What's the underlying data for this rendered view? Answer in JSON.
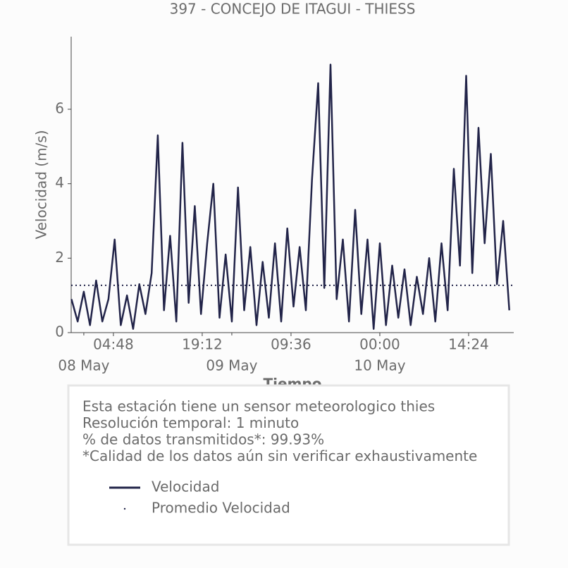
{
  "chart_data": {
    "type": "line",
    "title": "397 - CONCEJO DE ITAGUI - THIESS",
    "x_label": "Tiempo",
    "y_label": "Velocidad (m/s)",
    "x": [
      "07 May 22:00",
      "07 May 23:00",
      "08 May 00:00",
      "08 May 01:00",
      "08 May 02:00",
      "08 May 03:00",
      "08 May 04:00",
      "08 May 05:00",
      "08 May 06:00",
      "08 May 07:00",
      "08 May 08:00",
      "08 May 09:00",
      "08 May 10:00",
      "08 May 11:00",
      "08 May 12:00",
      "08 May 13:00",
      "08 May 14:00",
      "08 May 15:00",
      "08 May 16:00",
      "08 May 17:00",
      "08 May 18:00",
      "08 May 19:00",
      "08 May 20:00",
      "08 May 21:00",
      "08 May 22:00",
      "08 May 23:00",
      "09 May 00:00",
      "09 May 01:00",
      "09 May 02:00",
      "09 May 03:00",
      "09 May 04:00",
      "09 May 05:00",
      "09 May 06:00",
      "09 May 07:00",
      "09 May 08:00",
      "09 May 09:00",
      "09 May 10:00",
      "09 May 11:00",
      "09 May 12:00",
      "09 May 13:00",
      "09 May 14:00",
      "09 May 15:00",
      "09 May 16:00",
      "09 May 17:00",
      "09 May 18:00",
      "09 May 19:00",
      "09 May 20:00",
      "09 May 21:00",
      "09 May 22:00",
      "09 May 23:00",
      "10 May 00:00",
      "10 May 01:00",
      "10 May 02:00",
      "10 May 03:00",
      "10 May 04:00",
      "10 May 05:00",
      "10 May 06:00",
      "10 May 07:00",
      "10 May 08:00",
      "10 May 09:00",
      "10 May 10:00",
      "10 May 11:00",
      "10 May 12:00",
      "10 May 13:00",
      "10 May 14:00",
      "10 May 15:00",
      "10 May 16:00",
      "10 May 17:00",
      "10 May 18:00",
      "10 May 19:00",
      "10 May 20:00",
      "10 May 21:00"
    ],
    "series": [
      {
        "name": "Velocidad",
        "color": "#222449",
        "values": [
          0.9,
          0.3,
          1.1,
          0.2,
          1.4,
          0.3,
          0.9,
          2.5,
          0.2,
          1.0,
          0.1,
          1.3,
          0.5,
          1.6,
          5.3,
          0.6,
          2.6,
          0.3,
          5.1,
          0.8,
          3.4,
          0.5,
          2.4,
          4.0,
          0.4,
          2.1,
          0.3,
          3.9,
          0.6,
          2.3,
          0.2,
          1.9,
          0.4,
          2.4,
          0.3,
          2.8,
          0.7,
          2.3,
          0.6,
          4.1,
          6.7,
          1.2,
          7.2,
          0.9,
          2.5,
          0.3,
          3.3,
          0.5,
          2.5,
          0.1,
          2.4,
          0.2,
          1.8,
          0.4,
          1.7,
          0.2,
          1.5,
          0.5,
          2.0,
          0.3,
          2.4,
          0.6,
          4.4,
          1.8,
          6.9,
          1.6,
          5.5,
          2.4,
          4.8,
          1.3,
          3.0,
          0.6
        ]
      }
    ],
    "average": {
      "name": "Promedio Velocidad",
      "value": 1.27,
      "color": "#222449"
    },
    "xlim": [
      "07 May 21:57",
      "10 May 21:43"
    ],
    "xticks": [
      {
        "value": "08 May 04:48",
        "label": "04:48"
      },
      {
        "value": "08 May 19:12",
        "label": "19:12"
      },
      {
        "value": "09 May 09:36",
        "label": "09:36"
      },
      {
        "value": "10 May 00:00",
        "label": "00:00"
      },
      {
        "value": "10 May 14:24",
        "label": "14:24"
      }
    ],
    "xticks_dates": [
      {
        "value": "08 May 00:00",
        "label": "08 May"
      },
      {
        "value": "09 May 00:00",
        "label": "09 May"
      },
      {
        "value": "10 May 00:00",
        "label": "10 May"
      }
    ],
    "ylim": [
      0,
      7.95
    ],
    "yticks": [
      0,
      2,
      4,
      6
    ],
    "info_box": [
      "Esta estación tiene un sensor meteorologico thies",
      "Resolución temporal: 1 minuto",
      "% de datos transmitidos*: 99.93%",
      "*Calidad de los datos aún sin verificar exhaustivamente"
    ]
  }
}
